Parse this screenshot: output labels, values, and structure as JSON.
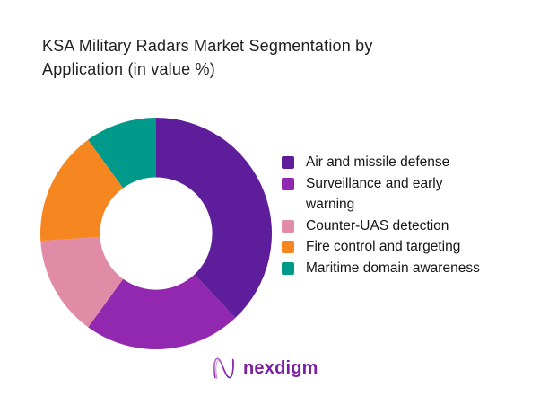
{
  "title": {
    "text": "KSA Military Radars Market Segmentation by Application (in value %)"
  },
  "chart_data": {
    "type": "pie",
    "subtype": "donut",
    "title": "KSA Military Radars Market Segmentation by Application (in value %)",
    "unit": "value %",
    "categories": [
      "Air and missile defense",
      "Surveillance and early warning",
      "Counter-UAS detection",
      "Fire control and targeting",
      "Maritime domain awareness"
    ],
    "values": [
      38,
      22,
      14,
      16,
      10
    ],
    "colors": [
      "#5E1E9B",
      "#9228AF",
      "#E08CA6",
      "#F6861F",
      "#00998A"
    ],
    "start_angle_deg": 0,
    "direction": "clockwise",
    "inner_radius_ratio": 0.485,
    "legend_position": "right",
    "data_labels": false
  },
  "legend": {
    "items": [
      {
        "label": "Air and missile defense",
        "color": "#5E1E9B"
      },
      {
        "label": "Surveillance and early warning",
        "color": "#9228AF"
      },
      {
        "label": "Counter-UAS detection",
        "color": "#E08CA6"
      },
      {
        "label": "Fire control and targeting",
        "color": "#F6861F"
      },
      {
        "label": "Maritime domain awareness",
        "color": "#00998A"
      }
    ]
  },
  "logo": {
    "text": "nexdigm",
    "color": "#7B1FA2"
  }
}
